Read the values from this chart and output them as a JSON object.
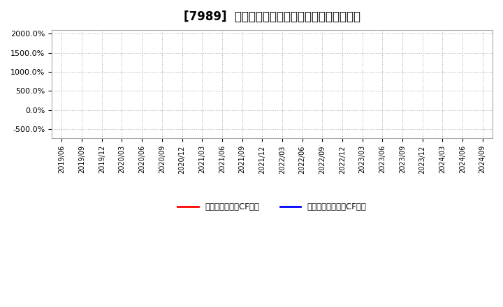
{
  "title": "[7989]  有利子負債キャッシュフロー比率の推移",
  "title_fontsize": 12,
  "background_color": "#ffffff",
  "plot_bg_color": "#ffffff",
  "grid_color": "#aaaaaa",
  "ylim": [
    -750,
    2100
  ],
  "yticks": [
    -500,
    0,
    500,
    1000,
    1500,
    2000
  ],
  "ytick_labels": [
    "-500.0%",
    "0.0%",
    "500.0%",
    "1000.0%",
    "1500.0%",
    "2000.0%"
  ],
  "xtick_labels": [
    "2019/06",
    "2019/09",
    "2019/12",
    "2020/03",
    "2020/06",
    "2020/09",
    "2020/12",
    "2021/03",
    "2021/06",
    "2021/09",
    "2021/12",
    "2022/03",
    "2022/06",
    "2022/09",
    "2022/12",
    "2023/03",
    "2023/06",
    "2023/09",
    "2023/12",
    "2024/03",
    "2024/06",
    "2024/09"
  ],
  "legend": [
    {
      "label": "有利子負債営業CF比率",
      "color": "#ff0000"
    },
    {
      "label": "有利子負債フリーCF比率",
      "color": "#0000ff"
    }
  ],
  "series": [
    {
      "label": "有利子負債営業CF比率",
      "color": "#ff0000",
      "data": []
    },
    {
      "label": "有利子負債フリーCF比率",
      "color": "#0000ff",
      "data": []
    }
  ]
}
